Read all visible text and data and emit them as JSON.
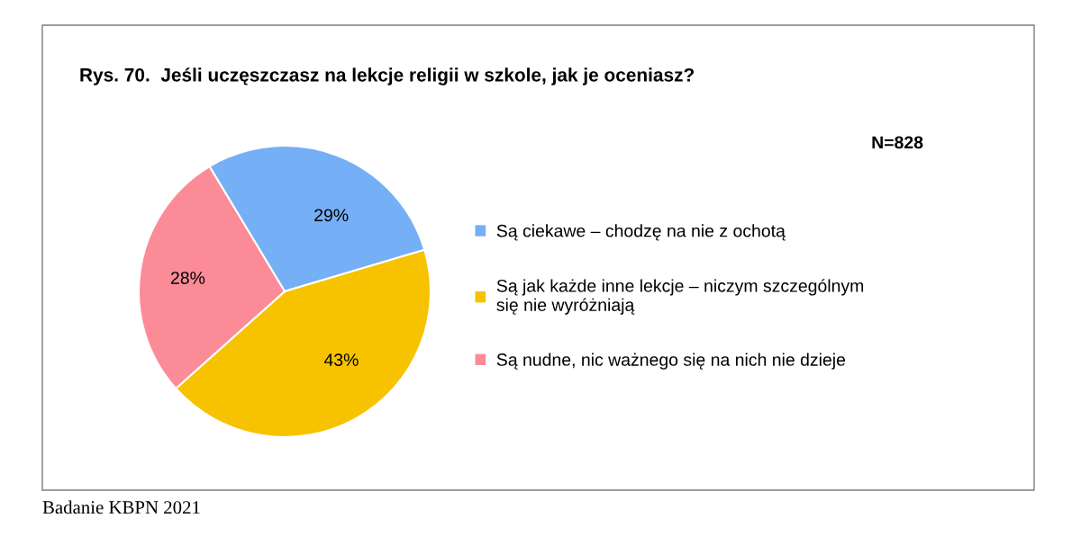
{
  "chart_data": {
    "type": "pie",
    "title": "Rys. 70.  Jeśli uczęszczasz na lekcje religii w szkole, jak je oceniasz?",
    "categories": [
      "Są ciekawe – chodzę na nie z ochotą",
      "Są jak każde inne lekcje – niczym szczególnym\nsię nie wyróżniają",
      "Są nudne, nic ważnego się na nich nie dzieje"
    ],
    "values": [
      29,
      43,
      28
    ],
    "colors": [
      "#75aff5",
      "#f7c200",
      "#fc8b98"
    ],
    "value_labels": [
      "29%",
      "43%",
      "28%"
    ],
    "legend": "right",
    "annotations": [
      "N=828",
      "Badanie KBPN 2021"
    ]
  }
}
